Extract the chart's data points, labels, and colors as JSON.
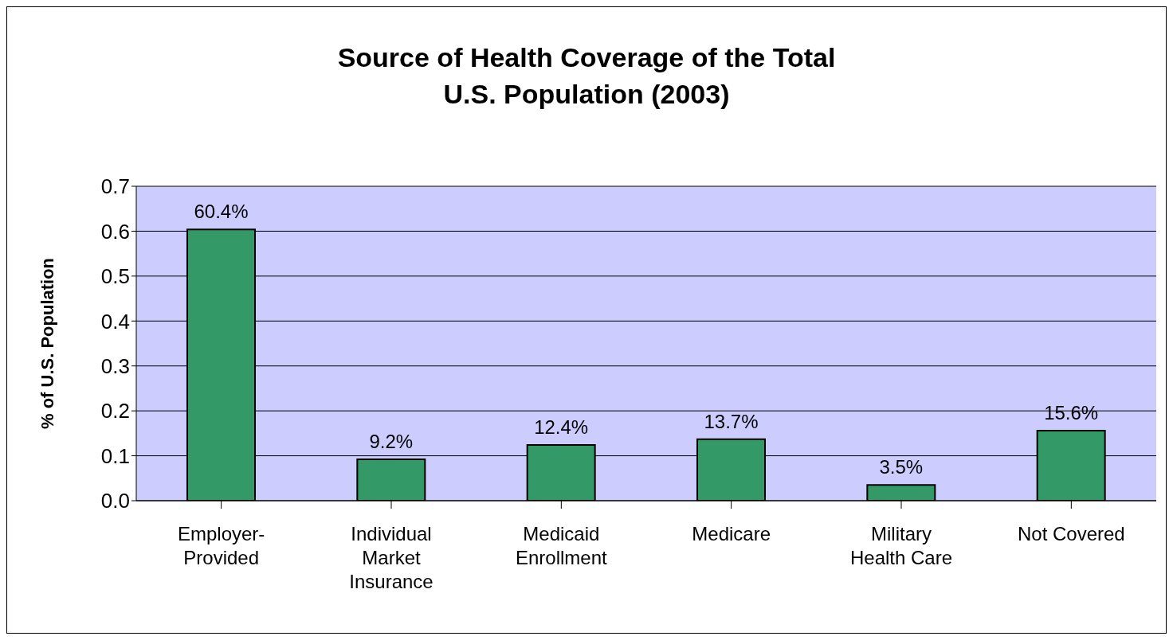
{
  "chart_data": {
    "type": "bar",
    "title": "Source of Health Coverage of the Total U.S. Population (2003)",
    "ylabel": "% of U.S. Population",
    "categories": [
      "Employer-Provided",
      "Individual Market Insurance",
      "Medicaid Enrollment",
      "Medicare",
      "Military Health Care",
      "Not Covered"
    ],
    "values": [
      0.604,
      0.092,
      0.124,
      0.137,
      0.035,
      0.156
    ],
    "value_labels": [
      "60.4%",
      "9.2%",
      "12.4%",
      "13.7%",
      "3.5%",
      "15.6%"
    ],
    "color": "#339966",
    "ylim": [
      0,
      0.7
    ],
    "yticks": [
      {
        "value": 0,
        "label": "0.0"
      },
      {
        "value": 0.1,
        "label": "0.1"
      },
      {
        "value": 0.2,
        "label": "0.2"
      },
      {
        "value": 0.3,
        "label": "0.3"
      },
      {
        "value": 0.4,
        "label": "0.4"
      },
      {
        "value": 0.5,
        "label": "0.5"
      },
      {
        "value": 0.6,
        "label": "0.6"
      },
      {
        "value": 0.7,
        "label": "0.7"
      }
    ],
    "grid": "y",
    "legend": false
  }
}
